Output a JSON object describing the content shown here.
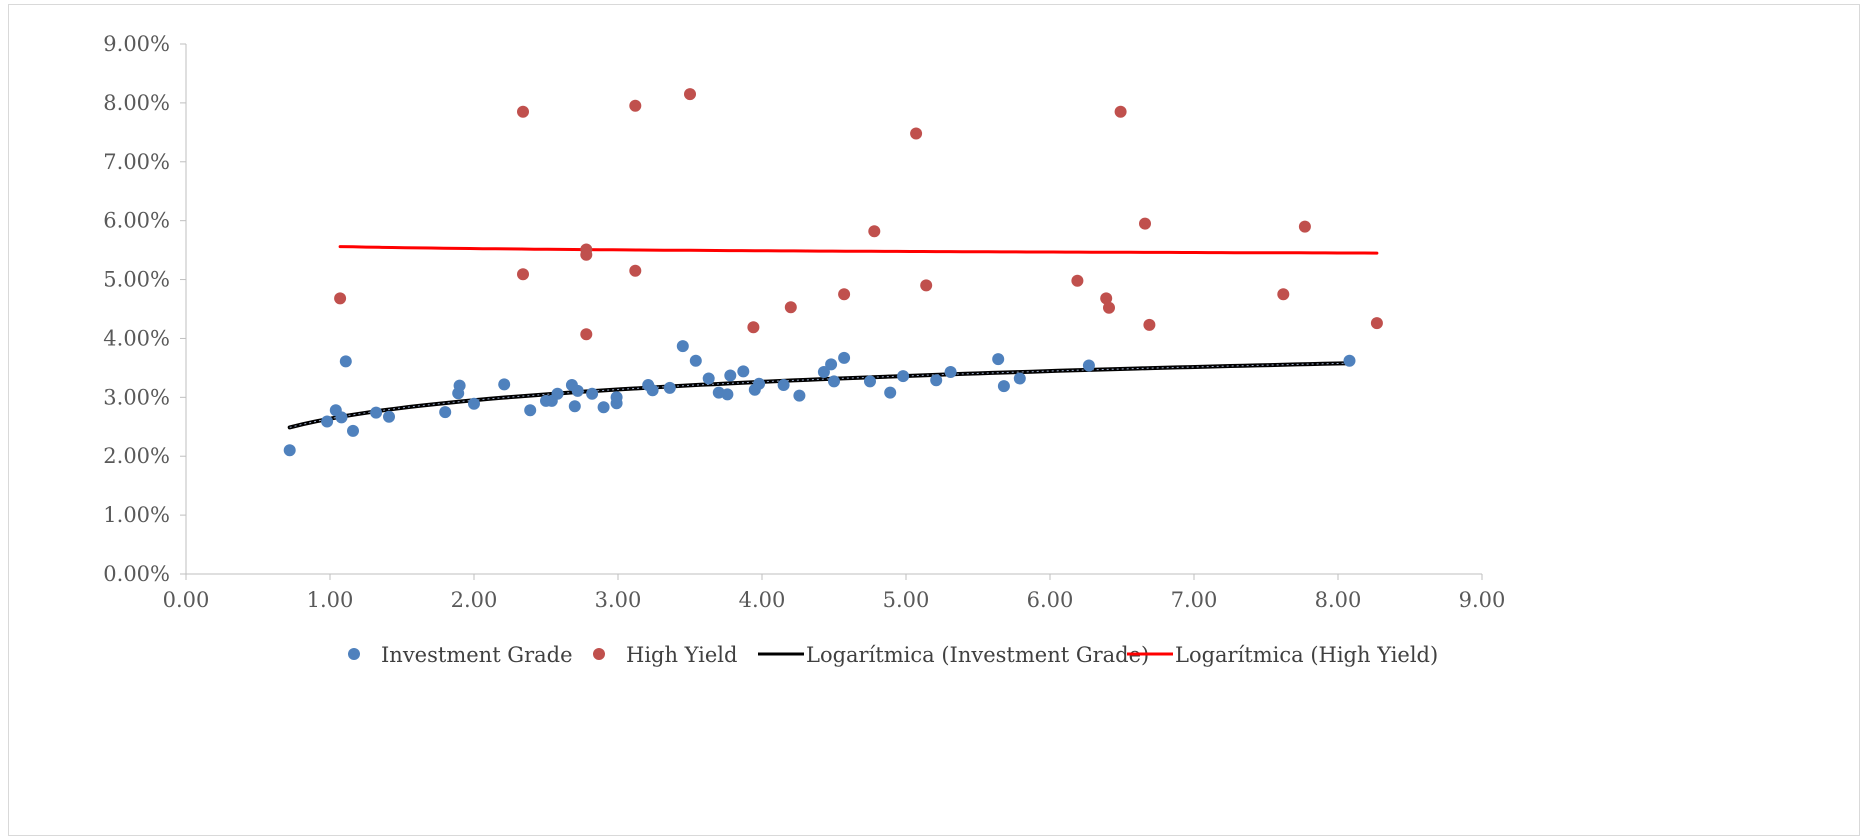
{
  "chart_data": {
    "type": "scatter",
    "title": "",
    "xlabel": "",
    "ylabel": "",
    "xlim": [
      0,
      9
    ],
    "ylim": [
      0,
      0.09
    ],
    "x_ticks": [
      "0.00",
      "1.00",
      "2.00",
      "3.00",
      "4.00",
      "5.00",
      "6.00",
      "7.00",
      "8.00",
      "9.00"
    ],
    "y_ticks": [
      "0.00%",
      "1.00%",
      "2.00%",
      "3.00%",
      "4.00%",
      "5.00%",
      "6.00%",
      "7.00%",
      "8.00%",
      "9.00%"
    ],
    "grid": false,
    "legend_position": "bottom",
    "series": [
      {
        "name": "Investment Grade",
        "kind": "scatter",
        "color": "#4f81bd",
        "points": [
          [
            0.72,
            0.021
          ],
          [
            0.98,
            0.0259
          ],
          [
            1.04,
            0.0278
          ],
          [
            1.08,
            0.0266
          ],
          [
            1.11,
            0.0361
          ],
          [
            1.16,
            0.0243
          ],
          [
            1.32,
            0.0274
          ],
          [
            1.41,
            0.0267
          ],
          [
            1.8,
            0.0275
          ],
          [
            1.89,
            0.0307
          ],
          [
            1.9,
            0.032
          ],
          [
            2.0,
            0.0289
          ],
          [
            2.21,
            0.0322
          ],
          [
            2.39,
            0.0278
          ],
          [
            2.5,
            0.0294
          ],
          [
            2.54,
            0.0294
          ],
          [
            2.58,
            0.0306
          ],
          [
            2.68,
            0.0321
          ],
          [
            2.7,
            0.0285
          ],
          [
            2.72,
            0.0311
          ],
          [
            2.82,
            0.0306
          ],
          [
            2.9,
            0.0283
          ],
          [
            2.99,
            0.029
          ],
          [
            2.99,
            0.03
          ],
          [
            3.21,
            0.0321
          ],
          [
            3.24,
            0.0312
          ],
          [
            3.36,
            0.0316
          ],
          [
            3.45,
            0.0387
          ],
          [
            3.54,
            0.0362
          ],
          [
            3.63,
            0.0332
          ],
          [
            3.7,
            0.0308
          ],
          [
            3.76,
            0.0305
          ],
          [
            3.78,
            0.0337
          ],
          [
            3.87,
            0.0344
          ],
          [
            3.95,
            0.0313
          ],
          [
            3.98,
            0.0323
          ],
          [
            4.15,
            0.0321
          ],
          [
            4.26,
            0.0303
          ],
          [
            4.43,
            0.0343
          ],
          [
            4.48,
            0.0356
          ],
          [
            4.5,
            0.0327
          ],
          [
            4.57,
            0.0367
          ],
          [
            4.75,
            0.0327
          ],
          [
            4.89,
            0.0308
          ],
          [
            4.98,
            0.0336
          ],
          [
            5.21,
            0.0329
          ],
          [
            5.31,
            0.0343
          ],
          [
            5.64,
            0.0365
          ],
          [
            5.68,
            0.0319
          ],
          [
            5.79,
            0.0332
          ],
          [
            6.27,
            0.0354
          ],
          [
            8.08,
            0.0362
          ]
        ]
      },
      {
        "name": "High Yield",
        "kind": "scatter",
        "color": "#c0504d",
        "points": [
          [
            1.07,
            0.0468
          ],
          [
            2.34,
            0.0785
          ],
          [
            2.34,
            0.0509
          ],
          [
            2.78,
            0.0551
          ],
          [
            2.78,
            0.0542
          ],
          [
            2.78,
            0.0407
          ],
          [
            3.12,
            0.0795
          ],
          [
            3.12,
            0.0515
          ],
          [
            3.5,
            0.0815
          ],
          [
            3.94,
            0.0419
          ],
          [
            4.2,
            0.0453
          ],
          [
            4.57,
            0.0475
          ],
          [
            4.78,
            0.0582
          ],
          [
            5.07,
            0.0748
          ],
          [
            5.14,
            0.049
          ],
          [
            6.19,
            0.0498
          ],
          [
            6.39,
            0.0468
          ],
          [
            6.41,
            0.0452
          ],
          [
            6.49,
            0.0785
          ],
          [
            6.66,
            0.0595
          ],
          [
            6.69,
            0.0423
          ],
          [
            7.62,
            0.0475
          ],
          [
            7.77,
            0.059
          ],
          [
            8.27,
            0.0426
          ]
        ]
      },
      {
        "name": "Logarítmica (Investment Grade)",
        "kind": "trendline-log",
        "color": "#000000",
        "x_range": [
          0.72,
          8.08
        ],
        "y_at_range": [
          0.0249,
          0.0358
        ]
      },
      {
        "name": "Logarítmica (High Yield)",
        "kind": "trendline-log",
        "color": "#ff0000",
        "x_range": [
          1.07,
          8.27
        ],
        "y_at_range": [
          0.0556,
          0.0545
        ]
      }
    ]
  }
}
